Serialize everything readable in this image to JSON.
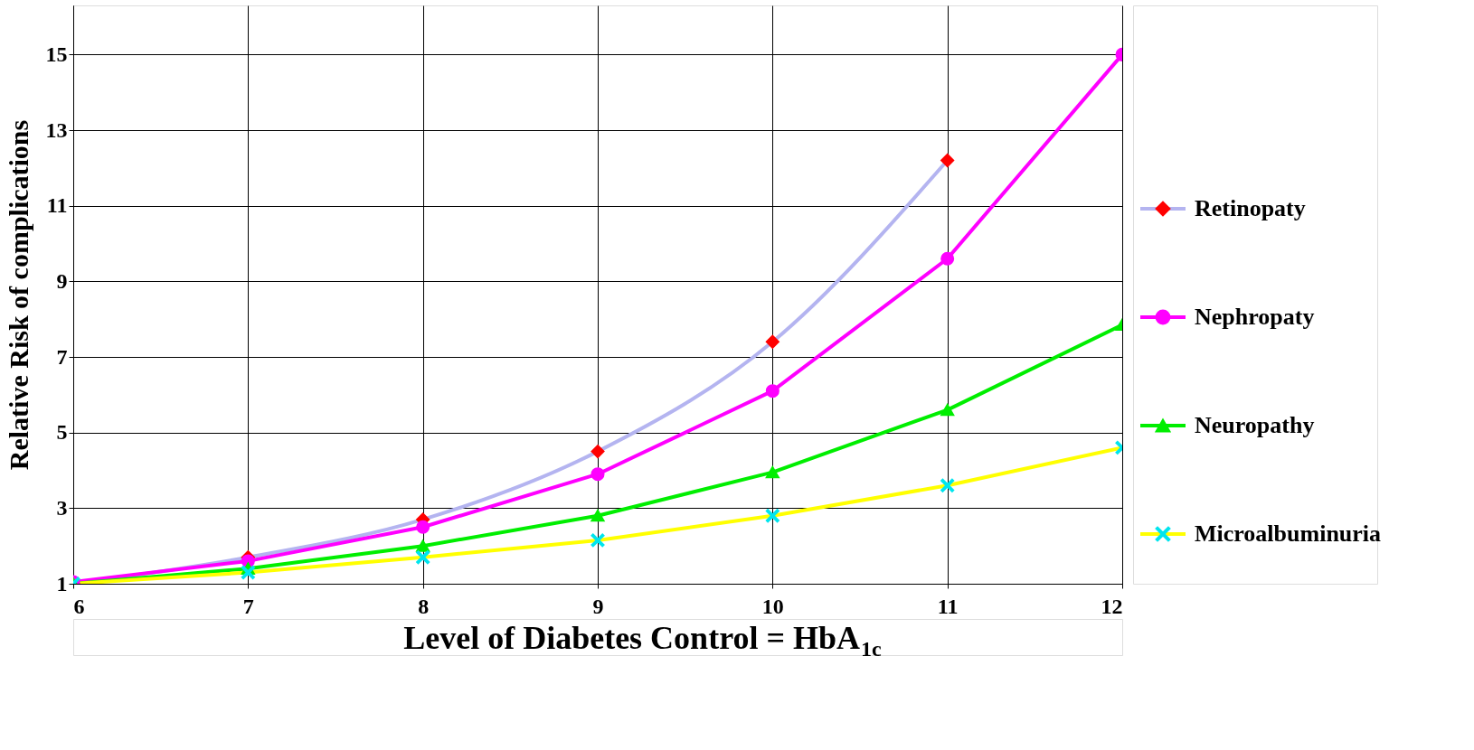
{
  "chart_data": {
    "type": "line",
    "xlabel": "Level  of Diabetes Control = HbA$_{1c}$",
    "ylabel": "Relative Risk  of complications",
    "x": [
      6,
      7,
      8,
      9,
      10,
      11,
      12
    ],
    "series": [
      {
        "name": "Retinopaty",
        "color": "#b4b4f0",
        "colors": [
          "#ff0000",
          "#ff0000",
          "#ff0000",
          "#ff0000",
          "#ff0000",
          "#ff0000",
          "#ff0000"
        ],
        "marker": "diamond",
        "values": [
          1.0,
          1.7,
          2.7,
          4.5,
          7.4,
          12.2,
          null
        ]
      },
      {
        "name": "Nephropaty",
        "color": "#ff00ff",
        "marker": "circle",
        "values": [
          1.05,
          1.6,
          2.5,
          3.9,
          6.1,
          9.6,
          15.0
        ]
      },
      {
        "name": "Neuropathy",
        "color": "#00ee00",
        "marker": "triangle",
        "values": [
          1.0,
          1.4,
          2.0,
          2.8,
          3.95,
          5.6,
          7.85
        ]
      },
      {
        "name": "Microalbuminuria",
        "color": "#ffff00",
        "colors": [
          "#00e5ee",
          "#00e5ee",
          "#00e5ee",
          "#00e5ee",
          "#00e5ee",
          "#00e5ee",
          "#00e5ee"
        ],
        "marker": "cross",
        "values": [
          1.0,
          1.3,
          1.7,
          2.15,
          2.8,
          3.6,
          4.6
        ]
      }
    ],
    "xlim": [
      6,
      12
    ],
    "xticks": [
      6,
      7,
      8,
      9,
      10,
      11,
      12
    ],
    "ylim": [
      1,
      16.3
    ],
    "yticks": [
      1,
      3,
      5,
      7,
      9,
      11,
      13,
      15
    ],
    "grid": true,
    "legend": "right"
  }
}
